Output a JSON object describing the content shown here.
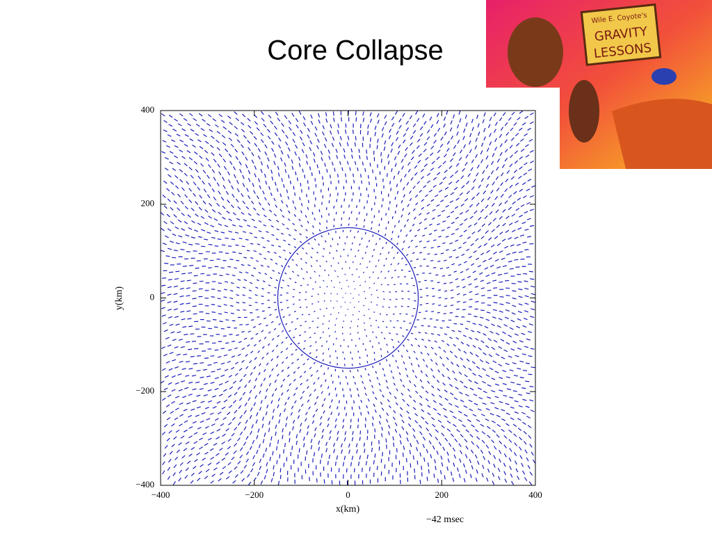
{
  "title": "Core Collapse",
  "image": {
    "sign": [
      "Wile E. Coyote's",
      "GRAVITY",
      "LESSONS"
    ]
  },
  "chart_data": {
    "type": "vector-field",
    "xlabel": "x(km)",
    "ylabel": "y(km)",
    "annotation": "−42 msec",
    "xlim": [
      -400,
      400
    ],
    "ylim": [
      -400,
      400
    ],
    "xticks": [
      {
        "value": -400,
        "label": "−400"
      },
      {
        "value": -200,
        "label": "−200"
      },
      0,
      200,
      400
    ],
    "yticks": [
      {
        "value": -400,
        "label": "−400"
      },
      {
        "value": -200,
        "label": "−200"
      },
      0,
      200,
      400
    ],
    "color": "#1a1ab8",
    "circle": {
      "radius": 150,
      "color": "#1a1ab8"
    }
  }
}
